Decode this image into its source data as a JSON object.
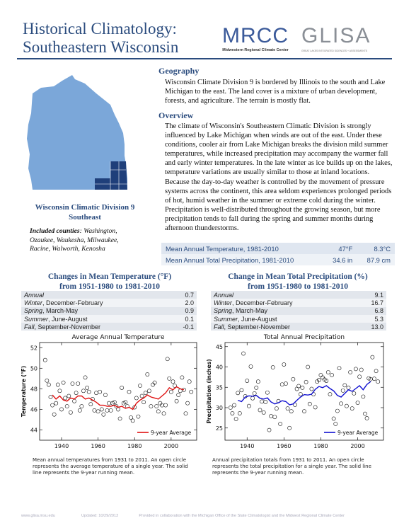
{
  "header": {
    "title_line1": "Historical Climatology:",
    "title_line2": "Southeastern Wisconsin",
    "logo_mrcc": "MRCC",
    "logo_mrcc_sub": "Midwestern Regional Climate Center",
    "logo_glisa": "GLISA",
    "logo_glisa_sub": "GREAT LAKES INTEGRATED SCIENCES + ASSESSMENTS"
  },
  "map": {
    "caption_line1": "Wisconsin Climatic Division 9",
    "caption_line2": "Southeast",
    "counties_label": "Included counties",
    "counties_line1": ": Washington,",
    "counties_line2": "Ozaukee, Waukesha, Milwaukee,",
    "counties_line3": "Racine, Walworth, Kenosha"
  },
  "geography": {
    "heading": "Geography",
    "text": "Wisconsin Climate Division 9 is bordered by Illinois to the south and Lake Michigan to the east. The land cover is a mixture of urban development, forests, and agriculture. The terrain is mostly flat."
  },
  "overview": {
    "heading": "Overview",
    "text": "The climate of Wisconsin's Southeastern Climatic Division is strongly influenced by Lake Michigan when winds are out of the east. Under these conditions, cooler air from Lake Michigan breaks the division mild summer temperatures, while increased precipitation may accompany the warmer fall and early winter temperatures. In the late winter as ice builds up on the lakes, temperature variations are usually similar to those at inland locations. Because the day-to-day weather is controlled by the movement of pressure systems across the continent, this area seldom experiences prolonged periods of hot, humid weather in the summer or extreme cold during the winter. Precipitation is well-distributed throughout the growing season, but more precipitation tends to fall during the spring and summer months during afternoon thunderstorms."
  },
  "means": [
    {
      "label": "Mean Annual Temperature, 1981-2010",
      "v1": "47°F",
      "v2": "8.3°C"
    },
    {
      "label": "Mean Annual Total Precipitation, 1981-2010",
      "v1": "34.6 in",
      "v2": "87.9 cm"
    }
  ],
  "temp_change": {
    "title_line1": "Changes in Mean Temperature (°F)",
    "title_line2": "from 1951-1980 to 1981-2010",
    "rows": [
      {
        "season": "Annual",
        "months": "",
        "value": "0.7"
      },
      {
        "season": "Winter",
        "months": ", December-February",
        "value": "2.0"
      },
      {
        "season": "Spring",
        "months": ", March-May",
        "value": "0.9"
      },
      {
        "season": "Summer",
        "months": ", June-August",
        "value": "0.1"
      },
      {
        "season": "Fall",
        "months": ", September-November",
        "value": "-0.1"
      }
    ]
  },
  "precip_change": {
    "title_line1": "Change in Mean Total Precipitation (%)",
    "title_line2": "from 1951-1980 to 1981-2010",
    "rows": [
      {
        "season": "Annual",
        "months": "",
        "value": "9.1"
      },
      {
        "season": "Winter",
        "months": ", December-February",
        "value": "16.7"
      },
      {
        "season": "Spring",
        "months": ", March-May",
        "value": "6.8"
      },
      {
        "season": "Summer",
        "months": ", June-August",
        "value": "5.3"
      },
      {
        "season": "Fall",
        "months": ", September-November",
        "value": "13.0"
      }
    ]
  },
  "captions": {
    "temp": "Mean annual temperatures from 1931 to 2011. An open circle represents the average temperature of a single year. The solid line represents the 9-year running mean.",
    "precip": "Annual precipitation totals from 1931 to 2011. An open circle represents the total precipitation for a single year. The solid line represents the 9-year running mean."
  },
  "footer": {
    "url": "www.glisa.msu.edu",
    "updated": "Updated: 10/29/2012",
    "credit": "Provided in collaboration with the Michigan Office of the State Climatologist and the Midwest Regional Climate Center"
  },
  "colors": {
    "heading": "#2b4c7e",
    "map_fill": "#7ba7d9",
    "map_highlight": "#1f3f7a",
    "temp_line": "#e01010",
    "precip_line": "#1010d0"
  },
  "chart_data": [
    {
      "type": "scatter",
      "title": "Average Annual Temperature",
      "xlabel": "",
      "ylabel": "Temperature (°F)",
      "xlim": [
        1928,
        2014
      ],
      "ylim": [
        43,
        52.5
      ],
      "xticks": [
        1940,
        1960,
        1980,
        2000
      ],
      "yticks": [
        44,
        46,
        48,
        50,
        52
      ],
      "legend_placement": "bottom-right",
      "series": [
        {
          "name": "",
          "style": "open-circle",
          "x": [
            1931,
            1932,
            1933,
            1934,
            1935,
            1936,
            1937,
            1938,
            1939,
            1940,
            1941,
            1942,
            1943,
            1944,
            1945,
            1946,
            1947,
            1948,
            1949,
            1950,
            1951,
            1952,
            1953,
            1954,
            1955,
            1956,
            1957,
            1958,
            1959,
            1960,
            1961,
            1962,
            1963,
            1964,
            1965,
            1966,
            1967,
            1968,
            1969,
            1970,
            1971,
            1972,
            1973,
            1974,
            1975,
            1976,
            1977,
            1978,
            1979,
            1980,
            1981,
            1982,
            1983,
            1984,
            1985,
            1986,
            1987,
            1988,
            1989,
            1990,
            1991,
            1992,
            1993,
            1994,
            1995,
            1996,
            1997,
            1998,
            1999,
            2000,
            2001,
            2002,
            2003,
            2004,
            2005,
            2006,
            2007,
            2008,
            2009,
            2010,
            2011
          ],
          "y": [
            50.8,
            48.8,
            48.4,
            47.2,
            46.4,
            45.5,
            46.6,
            48.4,
            47.8,
            46.0,
            48.6,
            47.1,
            46.3,
            47.3,
            45.7,
            48.5,
            46.8,
            47.6,
            48.5,
            45.9,
            46.3,
            47.8,
            49.1,
            48.1,
            47.7,
            46.5,
            47.0,
            45.9,
            47.6,
            45.8,
            47.7,
            46.0,
            45.5,
            47.4,
            45.9,
            46.6,
            45.9,
            46.6,
            46.7,
            46.3,
            46.0,
            45.1,
            48.1,
            46.6,
            46.7,
            46.3,
            47.7,
            45.2,
            44.9,
            46.2,
            47.1,
            45.3,
            48.3,
            47.3,
            46.7,
            47.6,
            49.4,
            47.8,
            46.3,
            48.4,
            48.6,
            46.3,
            45.8,
            46.6,
            46.4,
            45.6,
            46.4,
            50.9,
            49.0,
            47.7,
            48.7,
            48.3,
            46.8,
            47.4,
            47.8,
            49.1,
            47.9,
            45.6,
            46.6,
            48.7,
            47.7
          ]
        },
        {
          "name": "9-year Average",
          "style": "line",
          "x": [
            1935,
            1937,
            1939,
            1941,
            1943,
            1945,
            1947,
            1949,
            1951,
            1953,
            1955,
            1957,
            1959,
            1961,
            1963,
            1965,
            1967,
            1969,
            1971,
            1973,
            1975,
            1977,
            1979,
            1981,
            1983,
            1985,
            1987,
            1989,
            1991,
            1993,
            1995,
            1997,
            1999,
            2001,
            2003,
            2005,
            2007
          ],
          "y": [
            47.4,
            47.0,
            47.3,
            46.9,
            46.8,
            47.1,
            47.0,
            47.3,
            47.3,
            47.0,
            47.1,
            46.9,
            46.7,
            46.4,
            46.4,
            46.3,
            46.3,
            46.4,
            46.2,
            46.3,
            46.1,
            46.2,
            46.0,
            46.6,
            46.9,
            47.1,
            47.4,
            47.2,
            47.1,
            47.0,
            47.3,
            47.6,
            48.1,
            47.9,
            48.2,
            48.0,
            47.9
          ]
        }
      ]
    },
    {
      "type": "scatter",
      "title": "Total Annual Precipitation",
      "xlabel": "",
      "ylabel": "Precipitation (inches)",
      "xlim": [
        1928,
        2014
      ],
      "ylim": [
        22,
        46
      ],
      "xticks": [
        1940,
        1960,
        1980,
        2000
      ],
      "yticks": [
        25,
        30,
        35,
        40,
        45
      ],
      "legend_placement": "bottom-right",
      "series": [
        {
          "name": "",
          "style": "open-circle",
          "x": [
            1931,
            1932,
            1933,
            1934,
            1935,
            1936,
            1937,
            1938,
            1939,
            1940,
            1941,
            1942,
            1943,
            1944,
            1945,
            1946,
            1947,
            1948,
            1949,
            1950,
            1951,
            1952,
            1953,
            1954,
            1955,
            1956,
            1957,
            1958,
            1959,
            1960,
            1961,
            1962,
            1963,
            1964,
            1965,
            1966,
            1967,
            1968,
            1969,
            1970,
            1971,
            1972,
            1973,
            1974,
            1975,
            1976,
            1977,
            1978,
            1979,
            1980,
            1981,
            1982,
            1983,
            1984,
            1985,
            1986,
            1987,
            1988,
            1989,
            1990,
            1991,
            1992,
            1993,
            1994,
            1995,
            1996,
            1997,
            1998,
            1999,
            2000,
            2001,
            2002,
            2003,
            2004,
            2005,
            2006,
            2007,
            2008,
            2009,
            2010,
            2011
          ],
          "y": [
            30.0,
            28.6,
            30.6,
            27.2,
            33.6,
            28.6,
            34.3,
            43.3,
            32.8,
            36.6,
            30.4,
            40.1,
            32.3,
            33.5,
            34.9,
            36.4,
            29.4,
            31.5,
            28.8,
            31.4,
            33.7,
            24.5,
            27.9,
            39.9,
            27.7,
            29.8,
            31.6,
            26.0,
            35.7,
            40.6,
            35.9,
            29.8,
            25.0,
            29.1,
            37.0,
            30.7,
            34.6,
            35.3,
            33.3,
            34.9,
            29.1,
            36.3,
            40.0,
            30.9,
            34.6,
            33.3,
            30.1,
            36.4,
            36.8,
            38.0,
            37.4,
            36.9,
            36.6,
            38.7,
            33.3,
            38.0,
            27.3,
            26.0,
            29.2,
            39.7,
            31.0,
            34.2,
            35.5,
            30.4,
            34.9,
            38.7,
            29.8,
            33.5,
            39.5,
            31.2,
            37.6,
            39.3,
            32.7,
            28.5,
            27.4,
            37.2,
            37.0,
            42.4,
            37.1,
            39.0,
            36.4
          ]
        },
        {
          "name": "9-year Average",
          "style": "line",
          "x": [
            1935,
            1937,
            1939,
            1941,
            1943,
            1945,
            1947,
            1949,
            1951,
            1953,
            1955,
            1957,
            1959,
            1961,
            1963,
            1965,
            1967,
            1969,
            1971,
            1973,
            1975,
            1977,
            1979,
            1981,
            1983,
            1985,
            1987,
            1989,
            1991,
            1993,
            1995,
            1997,
            1999,
            2001,
            2003,
            2005,
            2007
          ],
          "y": [
            31.8,
            31.5,
            32.6,
            32.9,
            32.8,
            33.0,
            32.3,
            32.1,
            32.4,
            31.4,
            30.9,
            31.2,
            31.7,
            31.5,
            30.7,
            30.9,
            31.8,
            32.6,
            33.2,
            33.1,
            33.3,
            34.5,
            35.2,
            34.9,
            35.4,
            34.7,
            34.1,
            33.0,
            32.6,
            33.5,
            34.4,
            34.0,
            34.7,
            35.4,
            34.4,
            35.7,
            36.4
          ]
        }
      ]
    }
  ]
}
